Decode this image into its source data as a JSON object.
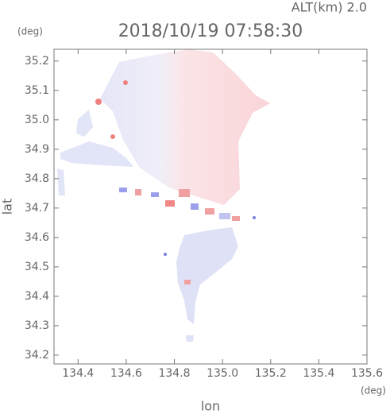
{
  "chart_data": {
    "type": "map",
    "title": "2018/10/19 07:58:30",
    "subtitle": "ALT(km) 2.0",
    "y_unit": "(deg)",
    "x_unit": "(deg)",
    "ylabel": "lat",
    "xlabel": "lon",
    "xlim": [
      134.3,
      135.6
    ],
    "ylim": [
      34.17,
      35.24
    ],
    "xticks": [
      134.4,
      134.6,
      134.8,
      {
        "value": 135,
        "label": "135.0"
      },
      135.2,
      135.4,
      135.6
    ],
    "yticks": [
      34.2,
      34.3,
      34.4,
      34.5,
      34.6,
      34.7,
      34.8,
      34.9,
      {
        "value": 35,
        "label": "35.0"
      },
      35.1,
      35.2
    ],
    "grid": false
  }
}
